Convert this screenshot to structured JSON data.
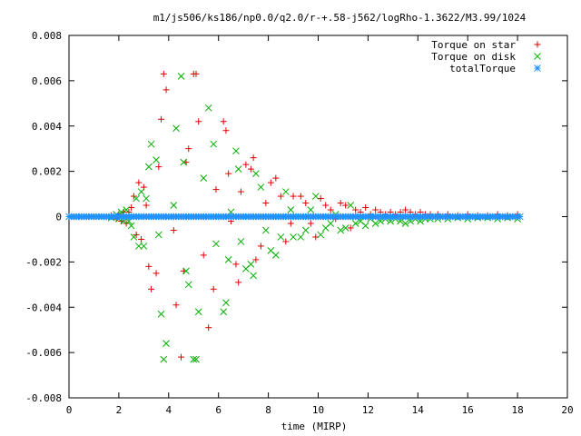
{
  "chart_data": {
    "type": "scatter",
    "title": "m1/js506/ks186/np0.0/q2.0/r-+.58-j562/logRho-1.3622/M3.99/1024",
    "xlabel": "time (MIRP)",
    "ylabel": "",
    "xlim": [
      0,
      20
    ],
    "ylim": [
      -0.008,
      0.008
    ],
    "x_ticks": [
      0,
      2,
      4,
      6,
      8,
      10,
      12,
      14,
      16,
      18,
      20
    ],
    "y_ticks": [
      -0.008,
      -0.006,
      -0.004,
      -0.002,
      0,
      0.002,
      0.004,
      0.006,
      0.008
    ],
    "x_tick_labels": [
      "0",
      "2",
      "4",
      "6",
      "8",
      "10",
      "12",
      "14",
      "16",
      "18",
      "20"
    ],
    "y_tick_labels": [
      "-0.008",
      "-0.006",
      "-0.004",
      "-0.002",
      "0",
      "0.002",
      "0.004",
      "0.006",
      "0.008"
    ],
    "grid": false,
    "legend_position": "top-right",
    "series": [
      {
        "name": "Torque on star",
        "marker": "plus",
        "color": "#e00000",
        "points": [
          [
            1.7,
            5e-05
          ],
          [
            1.9,
            -0.0001
          ],
          [
            2.0,
            0.0001
          ],
          [
            2.1,
            -0.0002
          ],
          [
            2.2,
            0.0002
          ],
          [
            2.3,
            -0.0003
          ],
          [
            2.4,
            0.0002
          ],
          [
            2.5,
            0.0004
          ],
          [
            2.6,
            0.0009
          ],
          [
            2.7,
            -0.0008
          ],
          [
            2.8,
            0.0015
          ],
          [
            2.9,
            -0.001
          ],
          [
            3.0,
            0.0013
          ],
          [
            3.1,
            0.0005
          ],
          [
            3.2,
            -0.0022
          ],
          [
            3.3,
            -0.0032
          ],
          [
            3.5,
            -0.0025
          ],
          [
            3.6,
            0.0022
          ],
          [
            3.7,
            0.0043
          ],
          [
            3.8,
            0.0063
          ],
          [
            3.9,
            0.0056
          ],
          [
            4.2,
            -0.0006
          ],
          [
            4.3,
            -0.0039
          ],
          [
            4.5,
            -0.0062
          ],
          [
            4.6,
            -0.0024
          ],
          [
            4.7,
            0.0024
          ],
          [
            4.8,
            0.003
          ],
          [
            5.0,
            0.0063
          ],
          [
            5.1,
            0.0063
          ],
          [
            5.2,
            0.0042
          ],
          [
            5.4,
            -0.0017
          ],
          [
            5.6,
            -0.0049
          ],
          [
            5.8,
            -0.0032
          ],
          [
            5.9,
            0.0012
          ],
          [
            6.2,
            0.0042
          ],
          [
            6.3,
            0.0038
          ],
          [
            6.4,
            0.0019
          ],
          [
            6.5,
            -0.0002
          ],
          [
            6.7,
            -0.0021
          ],
          [
            6.8,
            -0.0029
          ],
          [
            6.9,
            0.0011
          ],
          [
            7.1,
            0.0023
          ],
          [
            7.3,
            0.0021
          ],
          [
            7.4,
            0.0026
          ],
          [
            7.5,
            -0.0019
          ],
          [
            7.7,
            -0.0013
          ],
          [
            7.9,
            0.0006
          ],
          [
            8.1,
            0.0015
          ],
          [
            8.3,
            0.0017
          ],
          [
            8.5,
            0.0009
          ],
          [
            8.7,
            -0.0011
          ],
          [
            8.9,
            -0.0003
          ],
          [
            9.0,
            0.0009
          ],
          [
            9.3,
            0.0009
          ],
          [
            9.5,
            0.0006
          ],
          [
            9.7,
            -0.0003
          ],
          [
            9.9,
            -0.0009
          ],
          [
            10.1,
            0.0008
          ],
          [
            10.3,
            0.0005
          ],
          [
            10.5,
            0.0003
          ],
          [
            10.7,
            -0.0001
          ],
          [
            10.9,
            0.0006
          ],
          [
            11.1,
            0.0005
          ],
          [
            11.3,
            -0.0005
          ],
          [
            11.5,
            0.0003
          ],
          [
            11.7,
            0.0002
          ],
          [
            11.9,
            0.0004
          ],
          [
            12.1,
            0.0001
          ],
          [
            12.3,
            0.0003
          ],
          [
            12.5,
            0.0002
          ],
          [
            12.7,
            0.0001
          ],
          [
            12.9,
            0.0002
          ],
          [
            13.1,
            0.0001
          ],
          [
            13.3,
            0.0002
          ],
          [
            13.5,
            0.0003
          ],
          [
            13.7,
            0.0002
          ],
          [
            13.9,
            0.0001
          ],
          [
            14.1,
            0.0002
          ],
          [
            14.3,
            0.0001
          ],
          [
            14.5,
            0.0001
          ],
          [
            14.8,
            0.0001
          ],
          [
            15.2,
            0.0001
          ],
          [
            15.6,
            5e-05
          ],
          [
            16.0,
            0.0001
          ],
          [
            16.4,
            5e-05
          ],
          [
            16.8,
            5e-05
          ],
          [
            17.2,
            0.0001
          ],
          [
            17.6,
            5e-05
          ],
          [
            18.0,
            0.0001
          ]
        ]
      },
      {
        "name": "Torque on disk",
        "marker": "cross",
        "color": "#00b000",
        "points": [
          [
            1.7,
            -5e-05
          ],
          [
            1.9,
            0.0001
          ],
          [
            2.0,
            -0.0001
          ],
          [
            2.1,
            0.0002
          ],
          [
            2.2,
            -0.0002
          ],
          [
            2.3,
            0.0003
          ],
          [
            2.4,
            -0.0002
          ],
          [
            2.5,
            -0.0004
          ],
          [
            2.6,
            -0.0009
          ],
          [
            2.7,
            0.0008
          ],
          [
            2.8,
            -0.0013
          ],
          [
            2.9,
            0.0011
          ],
          [
            3.0,
            -0.0013
          ],
          [
            3.1,
            0.0008
          ],
          [
            3.2,
            0.0022
          ],
          [
            3.3,
            0.0032
          ],
          [
            3.5,
            0.0025
          ],
          [
            3.6,
            -0.0008
          ],
          [
            3.7,
            -0.0043
          ],
          [
            3.8,
            -0.0063
          ],
          [
            3.9,
            -0.0056
          ],
          [
            4.2,
            0.0005
          ],
          [
            4.3,
            0.0039
          ],
          [
            4.5,
            0.0062
          ],
          [
            4.6,
            0.0024
          ],
          [
            4.7,
            -0.0024
          ],
          [
            4.8,
            -0.003
          ],
          [
            5.0,
            -0.0063
          ],
          [
            5.1,
            -0.0063
          ],
          [
            5.2,
            -0.0042
          ],
          [
            5.4,
            0.0017
          ],
          [
            5.6,
            0.0048
          ],
          [
            5.8,
            0.0032
          ],
          [
            5.9,
            -0.0012
          ],
          [
            6.2,
            -0.0042
          ],
          [
            6.3,
            -0.0038
          ],
          [
            6.4,
            -0.0019
          ],
          [
            6.5,
            0.0002
          ],
          [
            6.7,
            0.0029
          ],
          [
            6.8,
            0.0021
          ],
          [
            6.9,
            -0.0011
          ],
          [
            7.1,
            -0.0023
          ],
          [
            7.3,
            -0.0021
          ],
          [
            7.4,
            -0.0026
          ],
          [
            7.5,
            0.0019
          ],
          [
            7.7,
            0.0013
          ],
          [
            7.9,
            -0.0006
          ],
          [
            8.1,
            -0.0015
          ],
          [
            8.3,
            -0.0017
          ],
          [
            8.5,
            -0.0009
          ],
          [
            8.7,
            0.0011
          ],
          [
            8.9,
            0.0003
          ],
          [
            9.0,
            -0.0009
          ],
          [
            9.3,
            -0.0009
          ],
          [
            9.5,
            -0.0006
          ],
          [
            9.7,
            0.0003
          ],
          [
            9.9,
            0.0009
          ],
          [
            10.1,
            -0.0008
          ],
          [
            10.3,
            -0.0005
          ],
          [
            10.5,
            -0.0003
          ],
          [
            10.7,
            0.0001
          ],
          [
            10.9,
            -0.0006
          ],
          [
            11.1,
            -0.0005
          ],
          [
            11.3,
            0.0005
          ],
          [
            11.5,
            -0.0003
          ],
          [
            11.7,
            -0.0002
          ],
          [
            11.9,
            -0.0004
          ],
          [
            12.1,
            -0.0001
          ],
          [
            12.3,
            -0.0003
          ],
          [
            12.5,
            -0.0002
          ],
          [
            12.7,
            -0.0001
          ],
          [
            12.9,
            -0.0002
          ],
          [
            13.1,
            -0.0001
          ],
          [
            13.3,
            -0.0002
          ],
          [
            13.5,
            -0.0003
          ],
          [
            13.7,
            -0.0002
          ],
          [
            13.9,
            -0.0001
          ],
          [
            14.1,
            -0.0002
          ],
          [
            14.3,
            -0.0001
          ],
          [
            14.5,
            -0.0001
          ],
          [
            14.8,
            -0.0001
          ],
          [
            15.2,
            -0.0001
          ],
          [
            15.6,
            -5e-05
          ],
          [
            16.0,
            -0.0001
          ],
          [
            16.4,
            -5e-05
          ],
          [
            16.8,
            -5e-05
          ],
          [
            17.2,
            -0.0001
          ],
          [
            17.6,
            -5e-05
          ],
          [
            18.0,
            -0.0001
          ]
        ]
      },
      {
        "name": "totalTorque",
        "marker": "star",
        "color": "#1e90ff",
        "x_start": 0.0,
        "x_end": 18.1,
        "x_step": 0.1,
        "y": 0
      }
    ]
  }
}
